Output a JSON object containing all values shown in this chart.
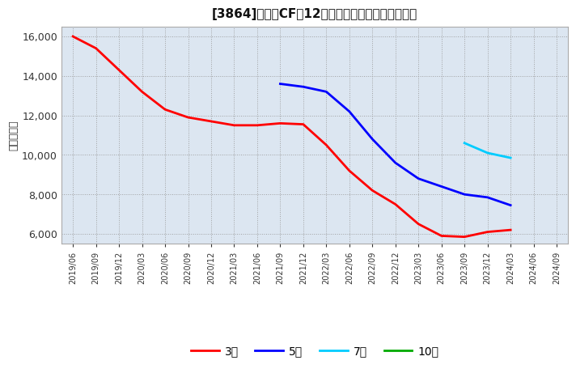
{
  "title": "[3864]　営業CFの12か月移動合計の平均値の推移",
  "ylabel": "（百万円）",
  "background_color": "#ffffff",
  "plot_background_color": "#dce6f1",
  "ylim": [
    5500,
    16500
  ],
  "yticks": [
    6000,
    8000,
    10000,
    12000,
    14000,
    16000
  ],
  "series": {
    "3year": {
      "label": "3年",
      "color": "#ff0000",
      "x": [
        "2019/06",
        "2019/09",
        "2019/12",
        "2020/03",
        "2020/06",
        "2020/09",
        "2020/12",
        "2021/03",
        "2021/06",
        "2021/09",
        "2021/12",
        "2022/03",
        "2022/06",
        "2022/09",
        "2022/12",
        "2023/03",
        "2023/06",
        "2023/09",
        "2023/12",
        "2024/03"
      ],
      "y": [
        16000,
        15400,
        14300,
        13200,
        12300,
        11900,
        11700,
        11500,
        11500,
        11600,
        11550,
        10500,
        9200,
        8200,
        7500,
        6500,
        5900,
        5850,
        6100,
        6200
      ]
    },
    "5year": {
      "label": "5年",
      "color": "#0000ff",
      "x": [
        "2021/09",
        "2021/12",
        "2022/03",
        "2022/06",
        "2022/09",
        "2022/12",
        "2023/03",
        "2023/06",
        "2023/09",
        "2023/12",
        "2024/03"
      ],
      "y": [
        13600,
        13450,
        13200,
        12200,
        10800,
        9600,
        8800,
        8400,
        8000,
        7850,
        7450
      ]
    },
    "7year": {
      "label": "7年",
      "color": "#00ccff",
      "x": [
        "2023/09",
        "2023/12",
        "2024/03"
      ],
      "y": [
        10600,
        10100,
        9850
      ]
    },
    "10year": {
      "label": "10年",
      "color": "#00aa00",
      "x": [],
      "y": []
    }
  },
  "xtick_labels": [
    "2019/06",
    "2019/09",
    "2019/12",
    "2020/03",
    "2020/06",
    "2020/09",
    "2020/12",
    "2021/03",
    "2021/06",
    "2021/09",
    "2021/12",
    "2022/03",
    "2022/06",
    "2022/09",
    "2022/12",
    "2023/03",
    "2023/06",
    "2023/09",
    "2023/12",
    "2024/03",
    "2024/06",
    "2024/09"
  ]
}
